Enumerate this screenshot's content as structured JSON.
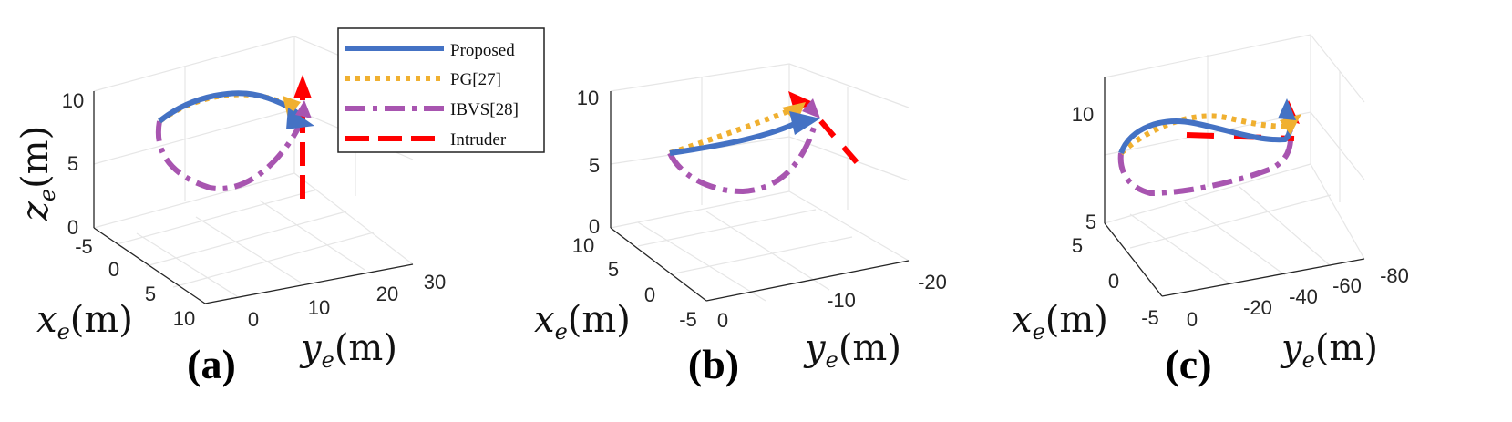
{
  "legend": {
    "items": [
      {
        "label": "Proposed",
        "color": "#4472C4",
        "dash": "solid"
      },
      {
        "label": "PG[27]",
        "color": "#F0B030",
        "dash": "dotted"
      },
      {
        "label": "IBVS[28]",
        "color": "#A855B0",
        "dash": "dashdot"
      },
      {
        "label": "Intruder",
        "color": "#FF0000",
        "dash": "dashed"
      }
    ]
  },
  "chart_data": [
    {
      "type": "line",
      "caption": "(a)",
      "xlabel": "x_e(m)",
      "ylabel": "y_e(m)",
      "zlabel": "z_e(m)",
      "x_ticks": [
        "-5",
        "0",
        "5",
        "10"
      ],
      "y_ticks": [
        "0",
        "10",
        "20",
        "30"
      ],
      "z_ticks": [
        "0",
        "5",
        "10"
      ],
      "grid": true
    },
    {
      "type": "line",
      "caption": "(b)",
      "xlabel": "x_e(m)",
      "ylabel": "y_e(m)",
      "zlabel": "",
      "x_ticks": [
        "10",
        "5",
        "0",
        "-5"
      ],
      "y_ticks": [
        "0",
        "-10",
        "-20"
      ],
      "z_ticks": [
        "0",
        "5",
        "10"
      ],
      "grid": true
    },
    {
      "type": "line",
      "caption": "(c)",
      "xlabel": "x_e(m)",
      "ylabel": "y_e(m)",
      "zlabel": "",
      "x_ticks": [
        "5",
        "0",
        "-5"
      ],
      "y_ticks": [
        "0",
        "-20",
        "-40",
        "-60",
        "-80"
      ],
      "z_ticks": [
        "5",
        "10"
      ],
      "grid": true
    }
  ]
}
